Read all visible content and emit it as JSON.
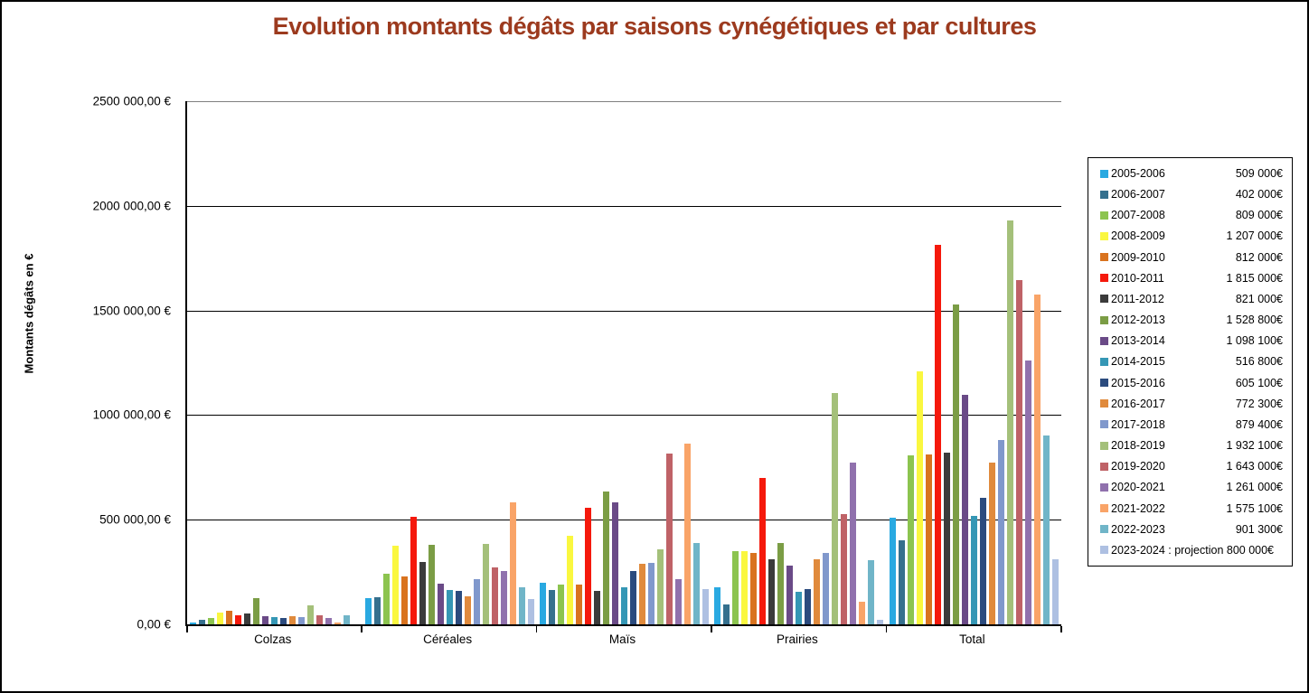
{
  "title": "Evolution montants dégâts par saisons cynégétiques et par cultures",
  "title_color": "#9C3A1E",
  "y_axis": {
    "label": "Montants dégâts en €",
    "ticks": [
      "2500 000,00 €",
      "2000 000,00 €",
      "1500 000,00 €",
      "1000 000,00 €",
      "500 000,00 €",
      "0,00 €"
    ]
  },
  "chart_data": {
    "type": "bar",
    "title": "Evolution montants dégâts par saisons cynégétiques et par cultures",
    "xlabel": "",
    "ylabel": "Montants dégâts en €",
    "ylim": [
      0,
      2500000
    ],
    "grid": true,
    "legend_position": "right",
    "categories": [
      "Colzas",
      "Céréales",
      "Maïs",
      "Prairies",
      "Total"
    ],
    "series": [
      {
        "name": "2005-2006",
        "color": "#29A9E1",
        "legend_label": "2005-2006",
        "legend_value": "509 000€",
        "values": [
          10000,
          125000,
          200000,
          175000,
          509000
        ]
      },
      {
        "name": "2006-2007",
        "color": "#35708E",
        "legend_label": "2006-2007",
        "legend_value": "402 000€",
        "values": [
          20000,
          130000,
          165000,
          95000,
          402000
        ]
      },
      {
        "name": "2007-2008",
        "color": "#8CC44F",
        "legend_label": "2007-2008",
        "legend_value": "809 000€",
        "values": [
          30000,
          240000,
          190000,
          350000,
          809000
        ]
      },
      {
        "name": "2008-2009",
        "color": "#FAF73F",
        "legend_label": "2008-2009",
        "legend_value": "1 207 000€",
        "values": [
          55000,
          375000,
          425000,
          350000,
          1207000
        ]
      },
      {
        "name": "2009-2010",
        "color": "#D9731F",
        "legend_label": "2009-2010",
        "legend_value": "812 000€",
        "values": [
          65000,
          230000,
          190000,
          340000,
          812000
        ]
      },
      {
        "name": "2010-2011",
        "color": "#F5190C",
        "legend_label": "2010-2011",
        "legend_value": "1 815 000€",
        "values": [
          45000,
          515000,
          555000,
          700000,
          1815000
        ]
      },
      {
        "name": "2011-2012",
        "color": "#3B3B3B",
        "legend_label": "2011-2012",
        "legend_value": "821 000€",
        "values": [
          50000,
          300000,
          160000,
          310000,
          821000
        ]
      },
      {
        "name": "2012-2013",
        "color": "#7B9D45",
        "legend_label": "2012-2013",
        "legend_value": "1 528 800€",
        "values": [
          125000,
          380000,
          635000,
          390000,
          1528800
        ]
      },
      {
        "name": "2013-2014",
        "color": "#6A4A87",
        "legend_label": "2013-2014",
        "legend_value": "1 098 100€",
        "values": [
          40000,
          195000,
          585000,
          280000,
          1098100
        ]
      },
      {
        "name": "2014-2015",
        "color": "#3597B5",
        "legend_label": "2014-2015",
        "legend_value": "516 800€",
        "values": [
          35000,
          165000,
          175000,
          155000,
          516800
        ]
      },
      {
        "name": "2015-2016",
        "color": "#2B4B7E",
        "legend_label": "2015-2016",
        "legend_value": "605 100€",
        "values": [
          30000,
          160000,
          255000,
          170000,
          605100
        ]
      },
      {
        "name": "2016-2017",
        "color": "#E08A3C",
        "legend_label": "2016-2017",
        "legend_value": "772 300€",
        "values": [
          40000,
          135000,
          290000,
          310000,
          772300
        ]
      },
      {
        "name": "2017-2018",
        "color": "#8098CC",
        "legend_label": "2017-2018",
        "legend_value": "879 400€",
        "values": [
          35000,
          215000,
          295000,
          340000,
          879400
        ]
      },
      {
        "name": "2018-2019",
        "color": "#A4C07A",
        "legend_label": "2018-2019",
        "legend_value": "1 932 100€",
        "values": [
          90000,
          385000,
          360000,
          1105000,
          1932100
        ]
      },
      {
        "name": "2019-2020",
        "color": "#BF6267",
        "legend_label": "2019-2020",
        "legend_value": "1 643 000€",
        "values": [
          45000,
          270000,
          815000,
          525000,
          1643000
        ]
      },
      {
        "name": "2020-2021",
        "color": "#9071AD",
        "legend_label": "2020-2021",
        "legend_value": "1 261 000€",
        "values": [
          30000,
          255000,
          215000,
          775000,
          1261000
        ]
      },
      {
        "name": "2021-2022",
        "color": "#F9A468",
        "legend_label": "2021-2022",
        "legend_value": "1 575 100€",
        "values": [
          10000,
          585000,
          865000,
          110000,
          1575100
        ]
      },
      {
        "name": "2022-2023",
        "color": "#70B5C8",
        "legend_label": "2022-2023",
        "legend_value": "901 300€",
        "values": [
          45000,
          175000,
          390000,
          305000,
          901300
        ]
      },
      {
        "name": "2023-2024",
        "color": "#AEC0E2",
        "legend_label": "2023-2024 : projection 800 000€",
        "legend_value": "",
        "values": [
          0,
          120000,
          170000,
          20000,
          310000
        ]
      }
    ]
  }
}
